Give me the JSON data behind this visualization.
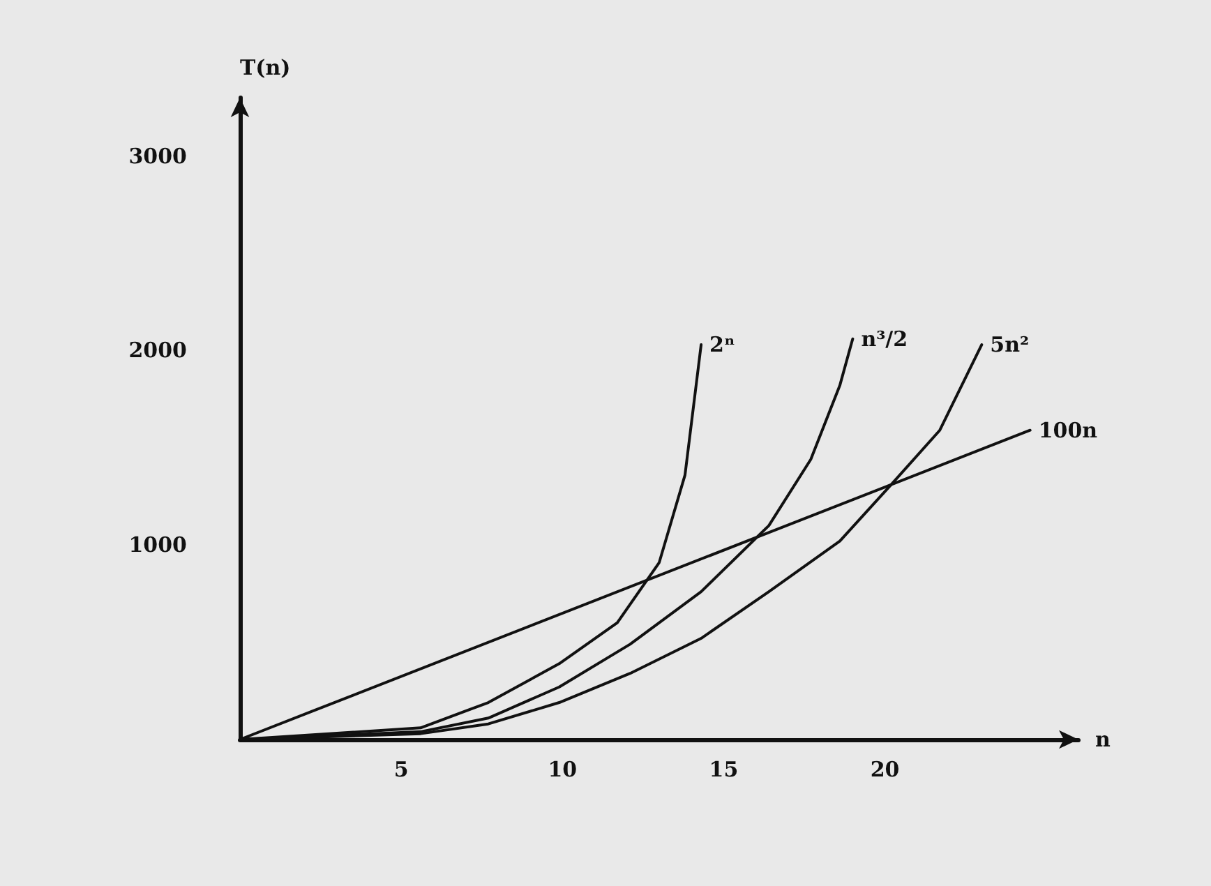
{
  "chart_data": {
    "type": "line",
    "xlabel": "n",
    "ylabel": "T(n)",
    "xlim": [
      0,
      26
    ],
    "xticks": [
      5,
      10,
      15,
      20
    ],
    "ylim": [
      0,
      3300
    ],
    "yticks": [
      1000,
      2000,
      3000
    ],
    "grid": false,
    "legend": false,
    "marker": "none",
    "line_style": "solid",
    "series": [
      {
        "name": "2ⁿ",
        "color": "#111111",
        "x": [
          0,
          5.6,
          7.7,
          9.9,
          11.7,
          13,
          13.8,
          14.3
        ],
        "values": [
          0,
          60,
          190,
          390,
          600,
          910,
          1360,
          2030
        ]
      },
      {
        "name": "n³/2",
        "color": "#111111",
        "x": [
          0,
          5.6,
          7.7,
          9.9,
          12.1,
          14.3,
          16.4,
          17.7,
          18.6,
          19.0
        ],
        "values": [
          0,
          40,
          110,
          270,
          490,
          760,
          1100,
          1440,
          1820,
          2060
        ]
      },
      {
        "name": "5n²",
        "color": "#111111",
        "x": [
          0,
          5.6,
          7.7,
          9.9,
          12.1,
          14.3,
          16.4,
          18.6,
          20.3,
          21.7,
          23
        ],
        "values": [
          0,
          30,
          80,
          190,
          340,
          520,
          760,
          1020,
          1330,
          1590,
          2030
        ]
      },
      {
        "name": "100n",
        "color": "#111111",
        "x": [
          0,
          24.5
        ],
        "values": [
          0,
          1590
        ]
      }
    ]
  }
}
